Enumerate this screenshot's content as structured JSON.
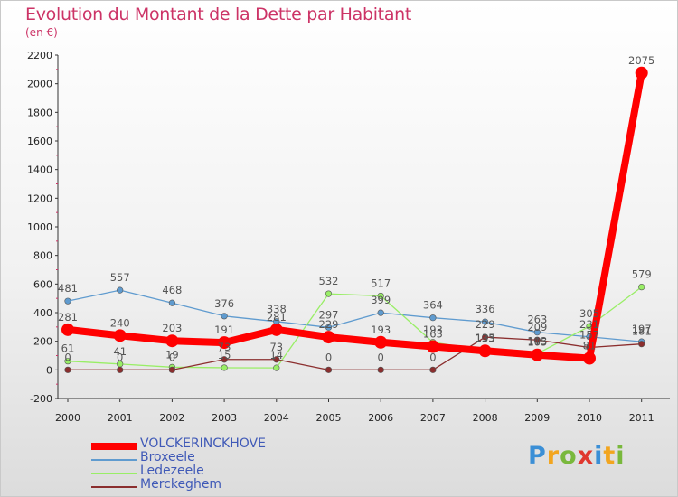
{
  "title": "Evolution du Montant de la Dette par Habitant",
  "subtitle": "(en €)",
  "logo": {
    "text": "Proxiti",
    "letter_colors": [
      "#3b8fd6",
      "#f2a51f",
      "#79b83c",
      "#e0372e",
      "#3b8fd6",
      "#f2a51f",
      "#79b83c"
    ]
  },
  "chart_data": {
    "type": "line",
    "title": "Evolution du Montant de la Dette par Habitant",
    "subtitle": "(en €)",
    "xlabel": "",
    "ylabel": "",
    "x": [
      "2000",
      "2001",
      "2002",
      "2003",
      "2004",
      "2005",
      "2006",
      "2007",
      "2008",
      "2009",
      "2010",
      "2011"
    ],
    "ylim": [
      -200,
      2200
    ],
    "yticks": [
      -200,
      0,
      200,
      400,
      600,
      800,
      1000,
      1200,
      1400,
      1600,
      1800,
      2000,
      2200
    ],
    "grid": false,
    "legend_position": "bottom-left",
    "series": [
      {
        "name": "VOLCKERINCKHOVE",
        "color": "#ff0000",
        "values": [
          281,
          240,
          203,
          191,
          281,
          229,
          193,
          163,
          133,
          105,
          81,
          2075
        ],
        "labels": [
          "281",
          "240",
          "203",
          "191",
          "281",
          "229",
          "193",
          "163",
          "133",
          "105",
          "81",
          "2075"
        ]
      },
      {
        "name": "Broxeele",
        "color": "#5f9bcf",
        "values": [
          481,
          557,
          468,
          376,
          338,
          297,
          399,
          364,
          336,
          263,
          231,
          197
        ],
        "labels": [
          "481",
          "557",
          "468",
          "376",
          "338",
          "297",
          "399",
          "364",
          "336",
          "263",
          "231",
          "197"
        ]
      },
      {
        "name": "Ledezeele",
        "color": "#99ee66",
        "values": [
          61,
          41,
          19,
          15,
          14,
          532,
          517,
          193,
          135,
          113,
          305,
          579
        ],
        "labels": [
          "61",
          "41",
          "19",
          "15",
          "14",
          "532",
          "517",
          "193",
          "135",
          "113",
          "305",
          "579"
        ]
      },
      {
        "name": "Merckeghem",
        "color": "#8b2e2e",
        "values": [
          0,
          0,
          0,
          73,
          73,
          0,
          0,
          0,
          229,
          209,
          157,
          181
        ],
        "labels": [
          "0",
          "0",
          "0",
          "73",
          "73",
          "0",
          "0",
          "0",
          "229",
          "209",
          "157",
          "181"
        ]
      }
    ]
  }
}
